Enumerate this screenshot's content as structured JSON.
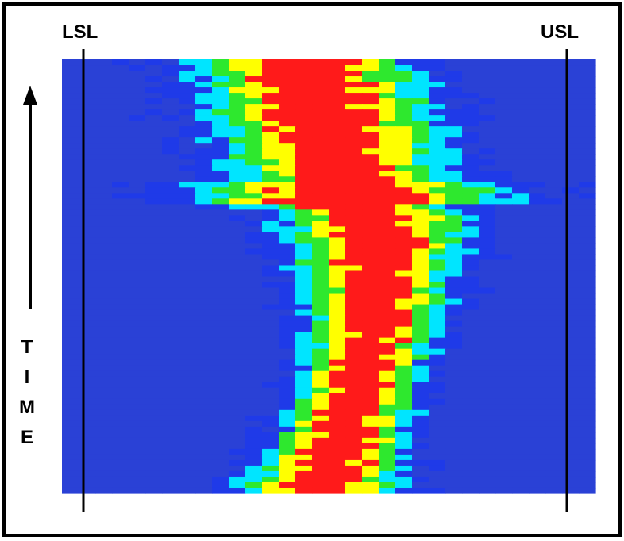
{
  "chart_data": {
    "type": "heatmap",
    "markers": [
      {
        "label": "LSL"
      },
      {
        "label": "USL"
      }
    ],
    "ylabel": "TIME",
    "grid": false,
    "legend": "none",
    "colors": {
      "background": "#ffffff",
      "frame": "#000000",
      "scale": [
        "#2a41d6",
        "#1f3ae8",
        "#00e5ff",
        "#2ee82e",
        "#ffff00",
        "#ff1a1a"
      ]
    }
  }
}
